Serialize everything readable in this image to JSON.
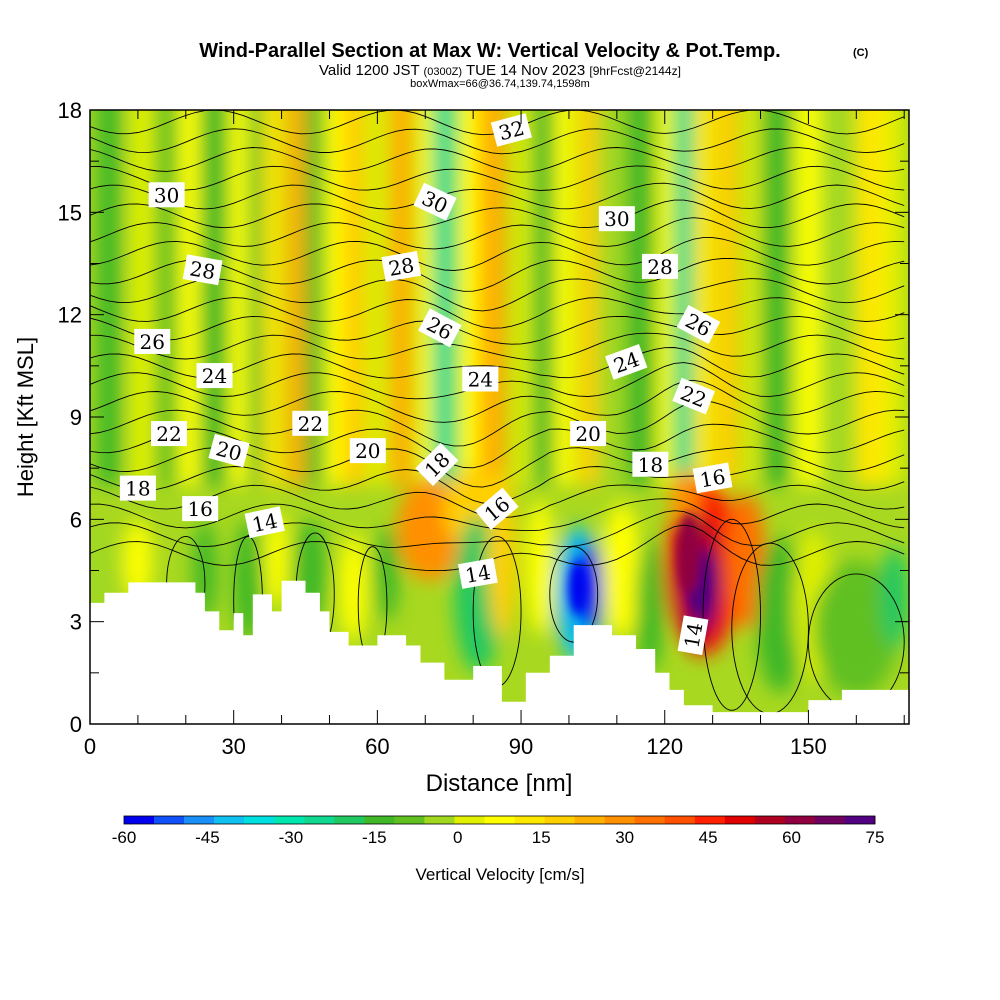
{
  "title": "Wind-Parallel Section at Max W: Vertical Velocity & Pot.Temp.",
  "title_mark": "(C)",
  "subtitle": {
    "valid": "Valid 1200 JST",
    "zulu": "(0300Z)",
    "date": "TUE 14 Nov 2023",
    "fcst": "[9hrFcst@2144z]"
  },
  "box_info": "boxWmax=66@36.74,139.74,1598m",
  "chart_data": {
    "type": "heatmap",
    "field": "vertical velocity (filled) with potential temperature contours",
    "xlabel": "Distance [nm]",
    "ylabel": "Height [Kft MSL]",
    "xlim": [
      0,
      171
    ],
    "ylim": [
      0,
      18
    ],
    "x_ticks": [
      0,
      30,
      60,
      90,
      120,
      150
    ],
    "y_ticks": [
      0,
      3,
      6,
      9,
      12,
      15,
      18
    ],
    "colorbar": {
      "label": "Vertical Velocity [cm/s]",
      "ticks": [
        -60,
        -45,
        -30,
        -15,
        0,
        15,
        30,
        45,
        60,
        75
      ],
      "min": -60,
      "max": 75,
      "colors": [
        "#0000f0",
        "#1050f8",
        "#1890f8",
        "#10c0f0",
        "#00e0e0",
        "#00e8b0",
        "#10d890",
        "#20c860",
        "#40b828",
        "#60c020",
        "#a0d820",
        "#e0f000",
        "#ffff00",
        "#ffe800",
        "#ffd000",
        "#ffb000",
        "#ff9000",
        "#ff7000",
        "#ff5000",
        "#ff2000",
        "#e00000",
        "#b00020",
        "#900040",
        "#700060",
        "#500080"
      ]
    },
    "theta_contour_labels": [
      {
        "value": "30",
        "x": 16,
        "y": 15.5
      },
      {
        "value": "28",
        "x": 23.5,
        "y": 13.3
      },
      {
        "value": "26",
        "x": 13,
        "y": 11.2
      },
      {
        "value": "24",
        "x": 26,
        "y": 10.2
      },
      {
        "value": "22",
        "x": 16.5,
        "y": 8.5
      },
      {
        "value": "20",
        "x": 29,
        "y": 8.0
      },
      {
        "value": "18",
        "x": 10,
        "y": 6.9
      },
      {
        "value": "16",
        "x": 23,
        "y": 6.3
      },
      {
        "value": "14",
        "x": 36.5,
        "y": 5.9
      },
      {
        "value": "22",
        "x": 46,
        "y": 8.8
      },
      {
        "value": "20",
        "x": 58,
        "y": 8.0
      },
      {
        "value": "28",
        "x": 65,
        "y": 13.4
      },
      {
        "value": "30",
        "x": 72,
        "y": 15.3
      },
      {
        "value": "26",
        "x": 73,
        "y": 11.6
      },
      {
        "value": "24",
        "x": 81.5,
        "y": 10.1
      },
      {
        "value": "18",
        "x": 72.5,
        "y": 7.6
      },
      {
        "value": "16",
        "x": 85,
        "y": 6.3
      },
      {
        "value": "14",
        "x": 81,
        "y": 4.4
      },
      {
        "value": "32",
        "x": 88,
        "y": 17.4
      },
      {
        "value": "30",
        "x": 110,
        "y": 14.8
      },
      {
        "value": "28",
        "x": 119,
        "y": 13.4
      },
      {
        "value": "24",
        "x": 112,
        "y": 10.6
      },
      {
        "value": "20",
        "x": 104,
        "y": 8.5
      },
      {
        "value": "18",
        "x": 117,
        "y": 7.6
      },
      {
        "value": "26",
        "x": 127,
        "y": 11.7
      },
      {
        "value": "22",
        "x": 126,
        "y": 9.6
      },
      {
        "value": "16",
        "x": 130,
        "y": 7.2
      },
      {
        "value": "14",
        "x": 126,
        "y": 2.6
      }
    ]
  }
}
